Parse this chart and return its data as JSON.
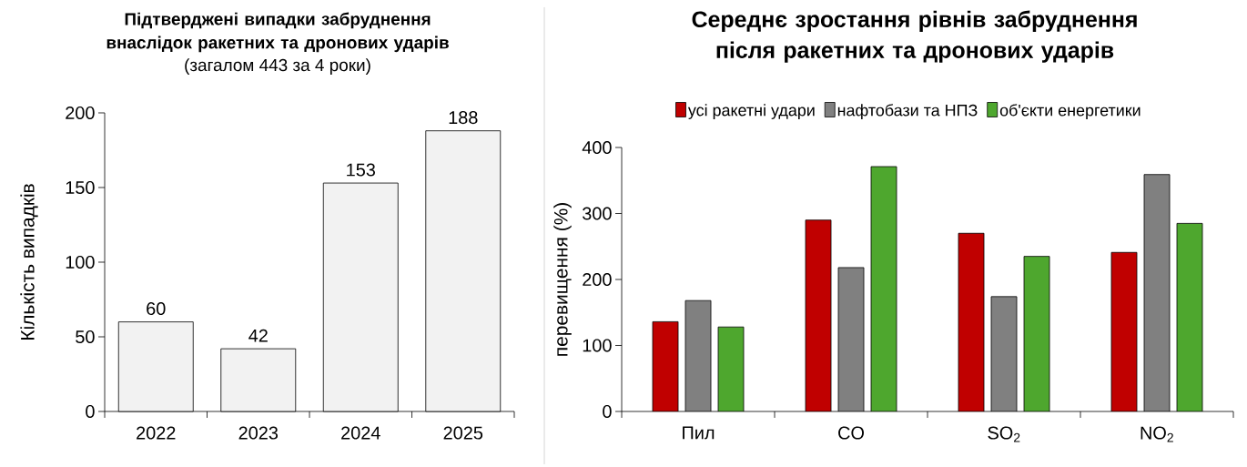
{
  "chart_data": [
    {
      "type": "bar",
      "title": "Підтверджені випадки забруднення\nвнаслідок ракетних та дронових ударів",
      "subtitle": "(загалом 443 за 4 роки)",
      "ylabel": "Кількість випадків",
      "categories": [
        "2022",
        "2023",
        "2024",
        "2025"
      ],
      "values": [
        60,
        42,
        153,
        188
      ],
      "color": "#f2f2f2",
      "data_labels": true,
      "ylim": [
        0,
        200
      ],
      "yticks": [
        0,
        50,
        100,
        150,
        200
      ]
    },
    {
      "type": "bar",
      "title": "Середнє зростання рівнів забруднення\nпісля ракетних та дронових ударів",
      "ylabel": "перевищення (%)",
      "categories": [
        "Пил",
        "CO",
        "SO$_{2}$",
        "NO$_{2}$"
      ],
      "series": [
        {
          "name": "усі ракетні удари",
          "color": "#c00000",
          "values": [
            136,
            290,
            270,
            241
          ]
        },
        {
          "name": "нафтобази та НПЗ",
          "color": "#808080",
          "values": [
            168,
            218,
            174,
            359
          ]
        },
        {
          "name": "об'єкти енергетики",
          "color": "#4ea72e",
          "values": [
            128,
            371,
            235,
            285
          ]
        }
      ],
      "legend": "top",
      "ylim": [
        0,
        400
      ],
      "yticks": [
        0,
        100,
        200,
        300,
        400
      ]
    }
  ]
}
